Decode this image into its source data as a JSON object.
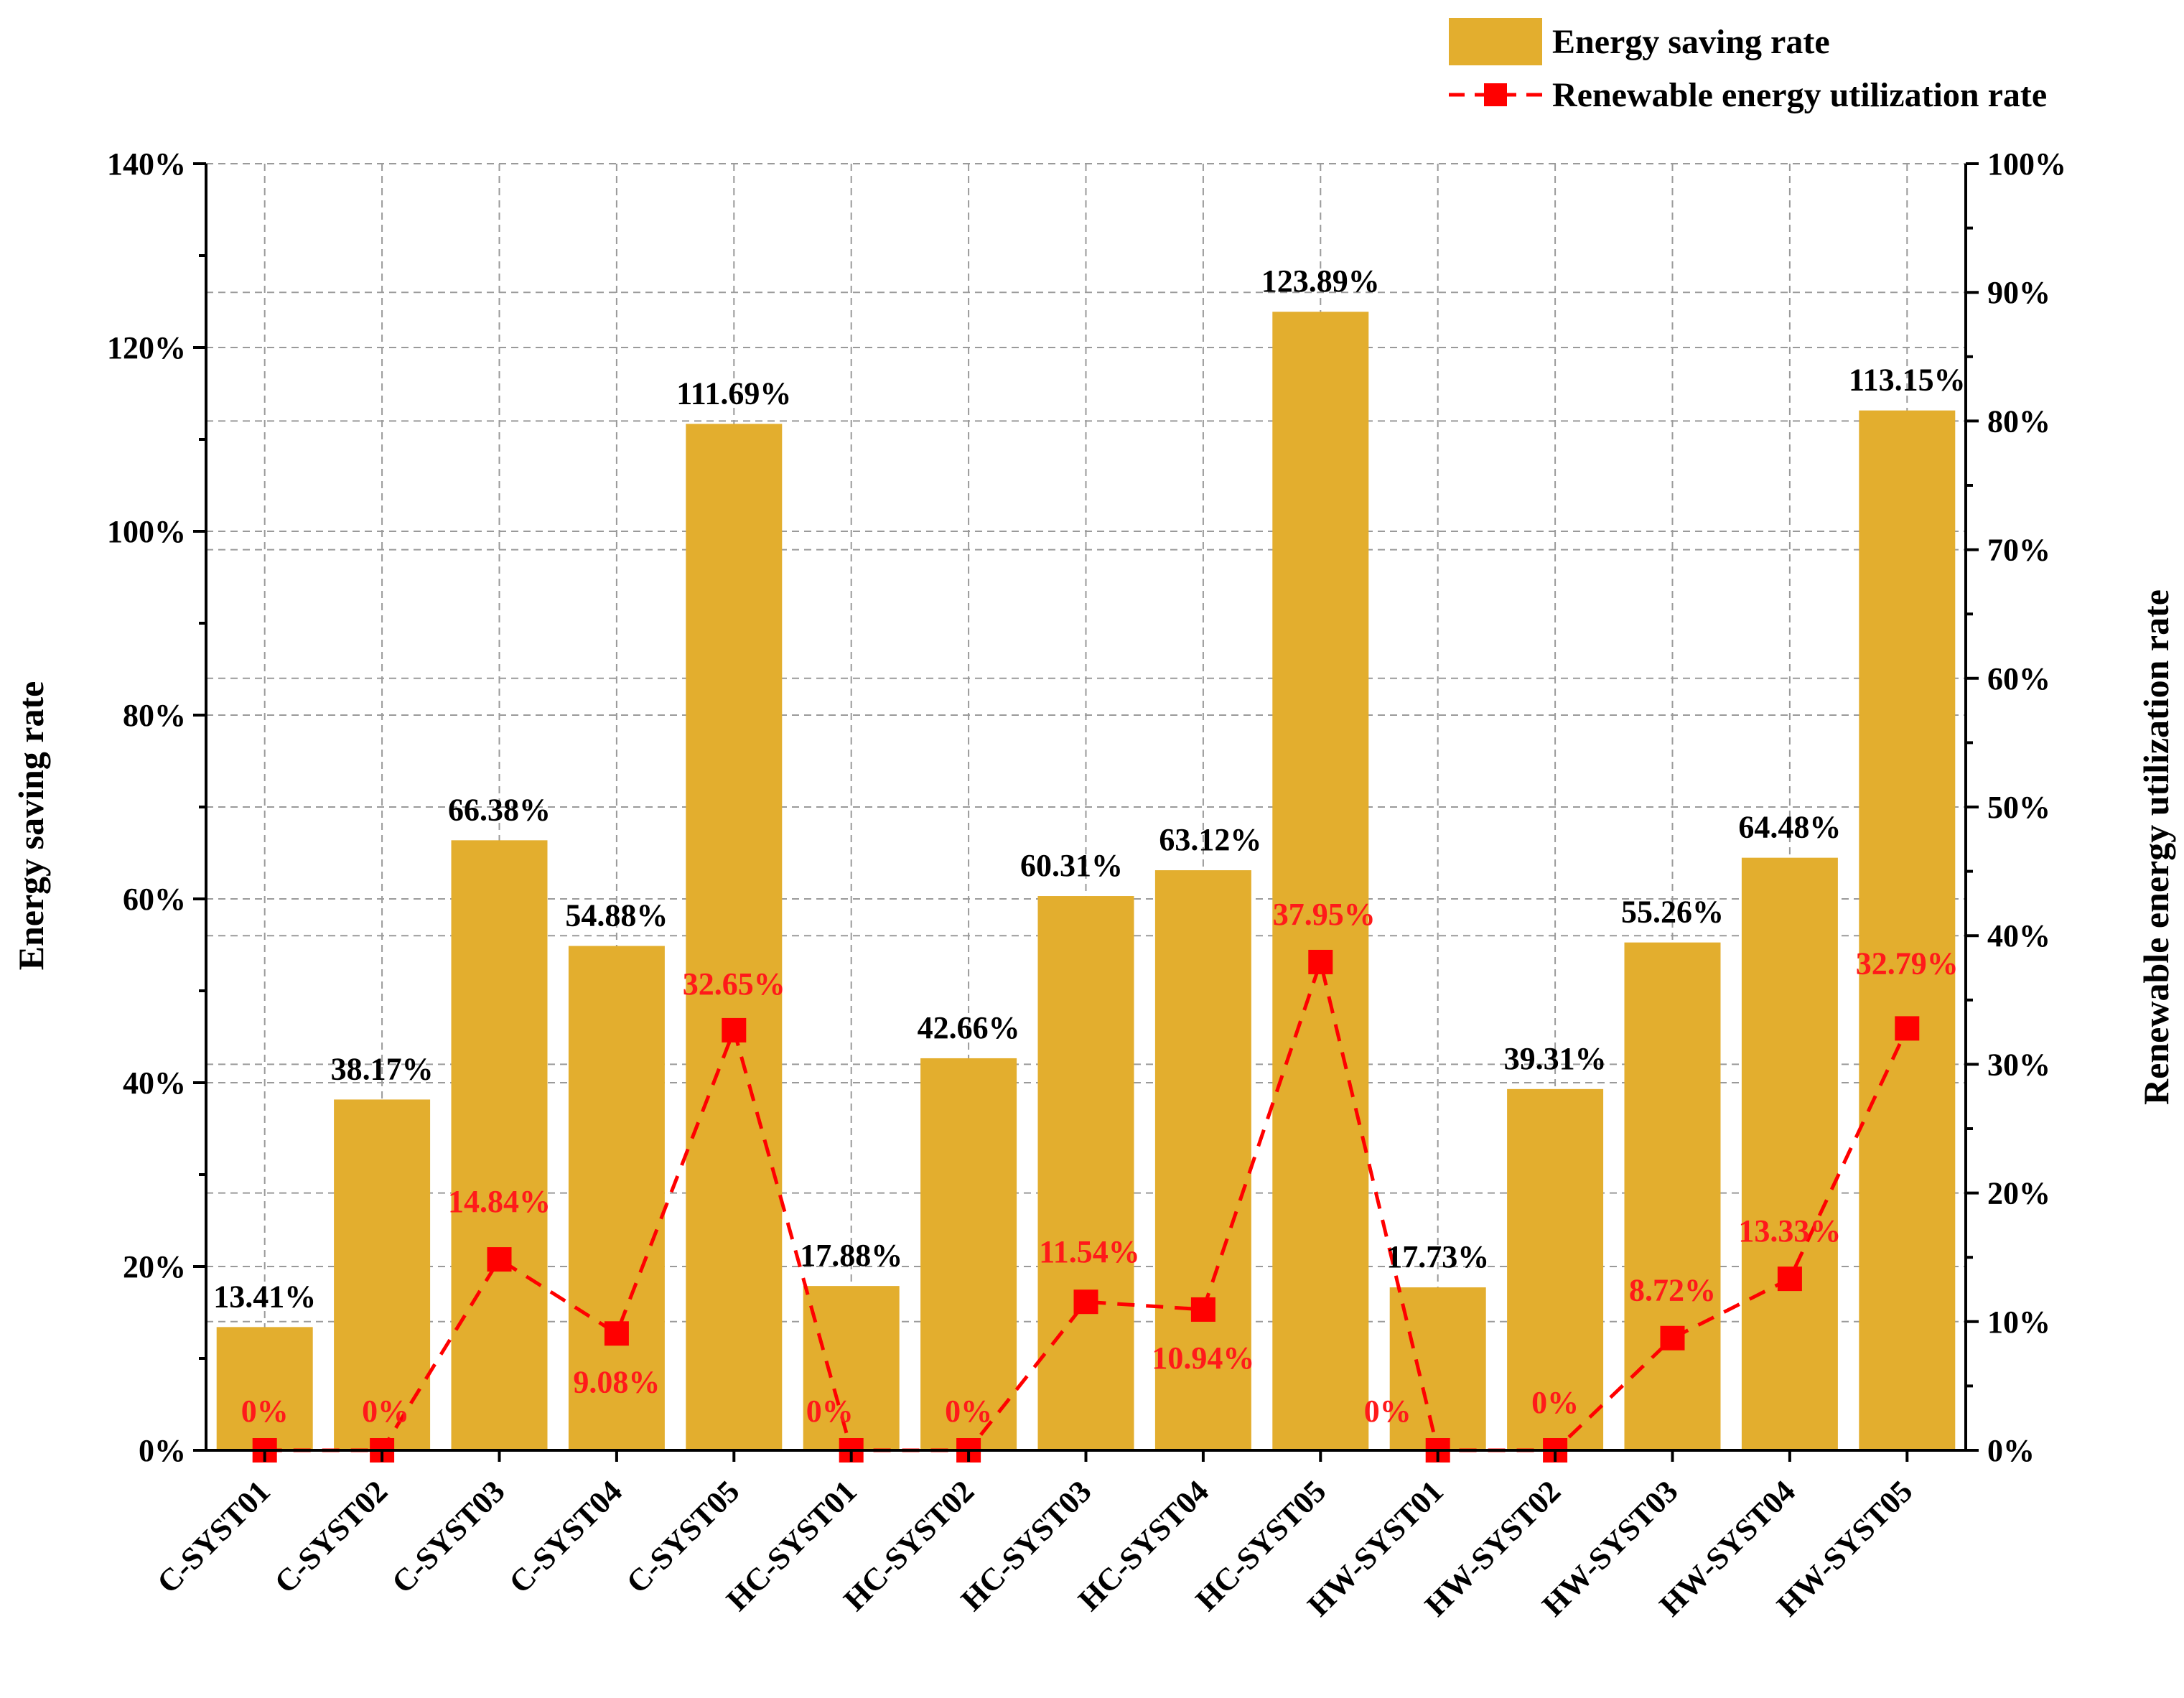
{
  "chart_data": {
    "type": "bar+line",
    "categories": [
      "C-SYST01",
      "C-SYST02",
      "C-SYST03",
      "C-SYST04",
      "C-SYST05",
      "HC-SYST01",
      "HC-SYST02",
      "HC-SYST03",
      "HC-SYST04",
      "HC-SYST05",
      "HW-SYST01",
      "HW-SYST02",
      "HW-SYST03",
      "HW-SYST04",
      "HW-SYST05"
    ],
    "series": [
      {
        "name": "Energy saving rate",
        "type": "bar",
        "axis": "left",
        "color": "#E3AE2E",
        "values": [
          13.41,
          38.17,
          66.38,
          54.88,
          111.69,
          17.88,
          42.66,
          60.31,
          63.12,
          123.89,
          17.73,
          39.31,
          55.26,
          64.48,
          113.15
        ],
        "labels": [
          "13.41%",
          "38.17%",
          "66.38%",
          "54.88%",
          "111.69%",
          "17.88%",
          "42.66%",
          "60.31%",
          "63.12%",
          "123.89%",
          "17.73%",
          "39.31%",
          "55.26%",
          "64.48%",
          "113.15%"
        ]
      },
      {
        "name": "Renewable energy utilization rate",
        "type": "line",
        "axis": "right",
        "color": "#FF0000",
        "values": [
          0,
          0,
          14.84,
          9.08,
          32.65,
          0,
          0,
          11.54,
          10.94,
          37.95,
          0,
          0,
          8.72,
          13.33,
          32.79
        ],
        "labels": [
          "0%",
          "0%",
          "14.84%",
          "9.08%",
          "32.65%",
          "0%",
          "0%",
          "11.54%",
          "10.94%",
          "37.95%",
          "0%",
          "0%",
          "8.72%",
          "13.33%",
          "32.79%"
        ]
      }
    ],
    "ylabel": "Energy saving rate",
    "ylabel_right": "Renewable energy utilization rate",
    "ylim": [
      0,
      140
    ],
    "ylim_right": [
      0,
      100
    ],
    "yticks": [
      "0%",
      "20%",
      "40%",
      "60%",
      "80%",
      "100%",
      "120%",
      "140%"
    ],
    "yticks_right": [
      "0%",
      "10%",
      "20%",
      "30%",
      "40%",
      "50%",
      "60%",
      "70%",
      "80%",
      "90%",
      "100%"
    ],
    "grid": true,
    "legend_position": "top-right"
  }
}
